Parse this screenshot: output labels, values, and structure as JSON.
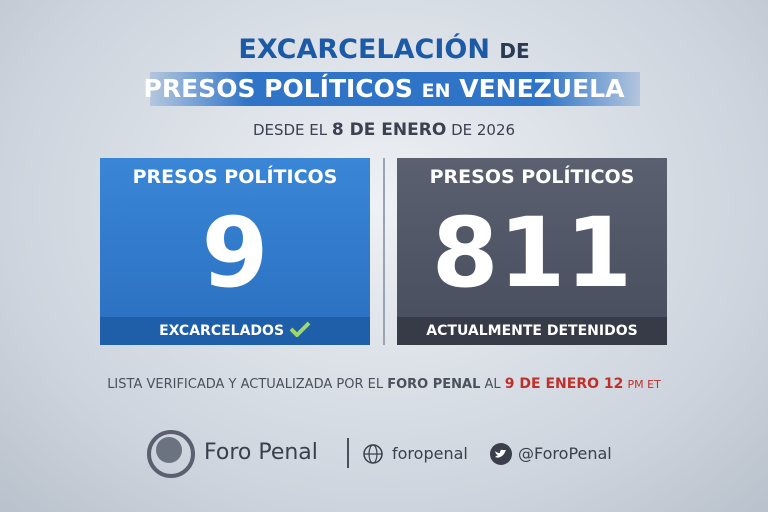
{
  "title": {
    "line1": {
      "main": "EXCARCELACIÓN",
      "small": "DE"
    },
    "line2": {
      "part1": "PRESOS POLÍTICOS",
      "small": "EN",
      "part2": "VENEZUELA"
    }
  },
  "subtitle": {
    "pre": "DESDE EL",
    "date": "8 DE ENERO",
    "post": "DE 2026"
  },
  "cards": [
    {
      "header": "PRESOS POLÍTICOS",
      "number": 9,
      "footer": "EXCARCELADOS"
    },
    {
      "header": "PRESOS POLÍTICOS",
      "number": 811,
      "footer": "ACTUALMENTE DETENIDOS"
    }
  ],
  "note": {
    "part1": "LISTA VERIFICADA Y ACTUALIZADA POR EL",
    "org": "FORO PENAL",
    "part2": "AL",
    "date": "9 DE ENERO 12",
    "time": "PM ET"
  },
  "brand": {
    "name": "Foro Penal",
    "web": "foropenal",
    "twitter": "@ForoPenal"
  }
}
